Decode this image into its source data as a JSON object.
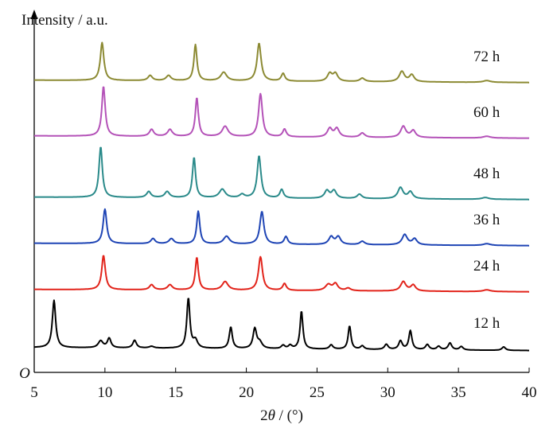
{
  "chart_data": {
    "type": "line",
    "ylabel": "Intensity / a.u.",
    "xlabel_prefix": "2",
    "xlabel_theta": "θ",
    "xlabel_suffix": " / (°)",
    "origin_label": "O",
    "xlim": [
      5,
      40
    ],
    "x_ticks": [
      "5",
      "10",
      "15",
      "20",
      "25",
      "30",
      "35",
      "40"
    ],
    "y_ticks": [],
    "grid": false,
    "legend": "inline labels at right end of each trace",
    "series": [
      {
        "name": "12 h",
        "color": "#000000",
        "baseline": 3,
        "baseline_slope": -0.1,
        "peaks": [
          [
            6.4,
            55,
            0.14
          ],
          [
            9.7,
            8,
            0.2
          ],
          [
            10.3,
            11,
            0.15
          ],
          [
            12.1,
            9,
            0.15
          ],
          [
            13.3,
            2,
            0.2
          ],
          [
            15.9,
            58,
            0.13
          ],
          [
            16.4,
            9,
            0.18
          ],
          [
            18.9,
            25,
            0.13
          ],
          [
            20.6,
            23,
            0.15
          ],
          [
            20.95,
            7,
            0.2
          ],
          [
            22.6,
            4,
            0.15
          ],
          [
            23.1,
            4,
            0.15
          ],
          [
            23.9,
            44,
            0.12
          ],
          [
            26.0,
            5,
            0.15
          ],
          [
            27.3,
            27,
            0.12
          ],
          [
            28.2,
            4,
            0.15
          ],
          [
            29.9,
            6,
            0.15
          ],
          [
            30.9,
            10,
            0.15
          ],
          [
            31.6,
            22,
            0.13
          ],
          [
            32.8,
            6,
            0.15
          ],
          [
            33.6,
            4,
            0.15
          ],
          [
            34.4,
            8,
            0.15
          ],
          [
            35.2,
            4,
            0.15
          ],
          [
            38.2,
            4,
            0.15
          ]
        ]
      },
      {
        "name": "24 h",
        "color": "#e2231a",
        "baseline": 4,
        "baseline_slope": -0.08,
        "peaks": [
          [
            9.9,
            40,
            0.15
          ],
          [
            13.3,
            6,
            0.18
          ],
          [
            14.6,
            6,
            0.2
          ],
          [
            16.5,
            38,
            0.13
          ],
          [
            18.5,
            10,
            0.25
          ],
          [
            21.0,
            39,
            0.17
          ],
          [
            22.7,
            8,
            0.15
          ],
          [
            25.8,
            7,
            0.25
          ],
          [
            26.3,
            8,
            0.2
          ],
          [
            27.2,
            3,
            0.2
          ],
          [
            31.1,
            11,
            0.22
          ],
          [
            31.8,
            7,
            0.2
          ],
          [
            37.0,
            2,
            0.3
          ]
        ]
      },
      {
        "name": "36 h",
        "color": "#1f45b5",
        "baseline": 4,
        "baseline_slope": -0.08,
        "peaks": [
          [
            10.0,
            40,
            0.15
          ],
          [
            13.4,
            6,
            0.18
          ],
          [
            14.7,
            6,
            0.2
          ],
          [
            16.6,
            38,
            0.13
          ],
          [
            18.6,
            9,
            0.25
          ],
          [
            21.1,
            38,
            0.17
          ],
          [
            22.8,
            9,
            0.15
          ],
          [
            26.0,
            9,
            0.2
          ],
          [
            26.5,
            9,
            0.2
          ],
          [
            28.2,
            4,
            0.2
          ],
          [
            31.2,
            12,
            0.22
          ],
          [
            31.9,
            7,
            0.2
          ],
          [
            37.0,
            2,
            0.3
          ]
        ]
      },
      {
        "name": "48 h",
        "color": "#2a8a8a",
        "baseline": 4,
        "baseline_slope": -0.08,
        "peaks": [
          [
            9.7,
            59,
            0.14
          ],
          [
            13.1,
            7,
            0.18
          ],
          [
            14.4,
            7,
            0.2
          ],
          [
            16.3,
            47,
            0.13
          ],
          [
            18.3,
            10,
            0.25
          ],
          [
            19.7,
            4,
            0.2
          ],
          [
            20.9,
            49,
            0.16
          ],
          [
            22.5,
            10,
            0.15
          ],
          [
            25.7,
            9,
            0.2
          ],
          [
            26.2,
            9,
            0.2
          ],
          [
            28.0,
            5,
            0.2
          ],
          [
            30.9,
            13,
            0.22
          ],
          [
            31.6,
            8,
            0.2
          ],
          [
            36.9,
            2,
            0.3
          ]
        ]
      },
      {
        "name": "60 h",
        "color": "#b452b8",
        "baseline": 4,
        "baseline_slope": -0.08,
        "peaks": [
          [
            9.9,
            58,
            0.14
          ],
          [
            13.3,
            8,
            0.18
          ],
          [
            14.6,
            8,
            0.2
          ],
          [
            16.5,
            45,
            0.13
          ],
          [
            18.5,
            12,
            0.25
          ],
          [
            21.0,
            50,
            0.16
          ],
          [
            22.7,
            9,
            0.15
          ],
          [
            25.9,
            10,
            0.2
          ],
          [
            26.4,
            10,
            0.2
          ],
          [
            28.2,
            5,
            0.2
          ],
          [
            31.1,
            13,
            0.22
          ],
          [
            31.8,
            8,
            0.2
          ],
          [
            37.0,
            2,
            0.3
          ]
        ]
      },
      {
        "name": "72 h",
        "color": "#8c8a33",
        "baseline": 4,
        "baseline_slope": -0.08,
        "peaks": [
          [
            9.8,
            44,
            0.15
          ],
          [
            13.2,
            6,
            0.18
          ],
          [
            14.5,
            6,
            0.2
          ],
          [
            16.4,
            42,
            0.13
          ],
          [
            18.4,
            10,
            0.25
          ],
          [
            20.9,
            44,
            0.17
          ],
          [
            22.6,
            9,
            0.15
          ],
          [
            25.9,
            9,
            0.2
          ],
          [
            26.3,
            9,
            0.2
          ],
          [
            28.2,
            4,
            0.2
          ],
          [
            31.0,
            12,
            0.22
          ],
          [
            31.7,
            8,
            0.2
          ],
          [
            37.0,
            2,
            0.3
          ]
        ]
      }
    ]
  }
}
